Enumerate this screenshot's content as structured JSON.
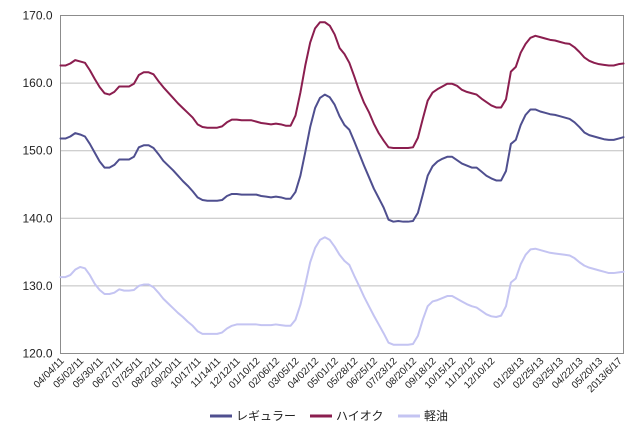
{
  "chart_data": {
    "type": "line",
    "title": "",
    "xlabel": "",
    "ylabel": "",
    "ylim": [
      120,
      170
    ],
    "yticks": [
      120,
      130,
      140,
      150,
      160,
      170
    ],
    "ytick_labels": [
      "120.0",
      "130.0",
      "140.0",
      "150.0",
      "160.0",
      "170.0"
    ],
    "grid": true,
    "legend_position": "bottom",
    "x": [
      "04/04/11",
      "04/11/11",
      "04/18/11",
      "04/25/11",
      "05/02/11",
      "05/09/11",
      "05/16/11",
      "05/23/11",
      "05/30/11",
      "06/06/11",
      "06/13/11",
      "06/20/11",
      "06/27/11",
      "07/04/11",
      "07/11/11",
      "07/18/11",
      "07/25/11",
      "08/01/11",
      "08/08/11",
      "08/15/11",
      "08/22/11",
      "08/29/11",
      "09/05/11",
      "09/12/11",
      "09/20/11",
      "09/26/11",
      "10/03/11",
      "10/10/11",
      "10/17/11",
      "10/24/11",
      "10/31/11",
      "11/07/11",
      "11/14/11",
      "11/21/11",
      "11/28/11",
      "12/05/11",
      "12/12/11",
      "12/19/11",
      "12/26/11",
      "01/02/12",
      "01/10/12",
      "01/16/12",
      "01/23/12",
      "01/30/12",
      "02/06/12",
      "02/13/12",
      "02/20/12",
      "02/27/12",
      "03/05/12",
      "03/12/12",
      "03/19/12",
      "03/26/12",
      "04/02/12",
      "04/09/12",
      "04/16/12",
      "04/23/12",
      "05/01/12",
      "05/07/12",
      "05/14/12",
      "05/21/12",
      "05/28/12",
      "06/04/12",
      "06/11/12",
      "06/18/12",
      "06/25/12",
      "07/02/12",
      "07/09/12",
      "07/17/12",
      "07/23/12",
      "07/30/12",
      "08/06/12",
      "08/13/12",
      "08/20/12",
      "08/27/12",
      "09/03/12",
      "09/10/12",
      "09/18/12",
      "09/24/12",
      "10/01/12",
      "10/09/12",
      "10/15/12",
      "10/22/12",
      "10/29/12",
      "11/05/12",
      "11/12/12",
      "11/19/12",
      "11/26/12",
      "12/03/12",
      "12/10/12",
      "12/17/12",
      "12/25/12",
      "01/07/13",
      "01/15/13",
      "01/21/13",
      "01/28/13",
      "02/04/13",
      "02/12/13",
      "02/18/13",
      "02/25/13",
      "03/04/13",
      "03/11/13",
      "03/18/13",
      "03/25/13",
      "04/01/13",
      "04/08/13",
      "04/15/13",
      "04/22/13",
      "04/30/13",
      "05/07/13",
      "05/13/13",
      "05/20/13",
      "05/27/13",
      "06/03/13",
      "06/10/13",
      "2013/6/17",
      "06/24/13"
    ],
    "xtick_labels": [
      "04/04/11",
      "05/02/11",
      "05/30/11",
      "06/27/11",
      "07/25/11",
      "08/22/11",
      "09/20/11",
      "10/17/11",
      "11/14/11",
      "12/12/11",
      "01/10/12",
      "02/06/12",
      "03/05/12",
      "04/02/12",
      "05/01/12",
      "05/28/12",
      "06/25/12",
      "07/23/12",
      "08/20/12",
      "09/18/12",
      "10/15/12",
      "11/12/12",
      "12/10/12",
      "01/28/13",
      "02/25/13",
      "03/25/13",
      "04/22/13",
      "05/20/13",
      "2013/6/17"
    ],
    "series": [
      {
        "name": "レギュラー",
        "color": "#4f4f8f",
        "values": [
          151.8,
          151.8,
          152.1,
          152.6,
          152.4,
          152.1,
          151.0,
          149.7,
          148.4,
          147.5,
          147.5,
          147.9,
          148.7,
          148.7,
          148.7,
          149.1,
          150.5,
          150.8,
          150.8,
          150.4,
          149.5,
          148.5,
          147.8,
          147.1,
          146.3,
          145.5,
          144.8,
          144.0,
          143.1,
          142.7,
          142.6,
          142.6,
          142.6,
          142.7,
          143.3,
          143.6,
          143.6,
          143.5,
          143.5,
          143.5,
          143.5,
          143.3,
          143.2,
          143.1,
          143.2,
          143.1,
          142.9,
          142.9,
          143.9,
          146.3,
          149.8,
          153.5,
          156.3,
          157.8,
          158.3,
          157.9,
          156.8,
          155.1,
          153.8,
          153.1,
          151.4,
          149.6,
          147.8,
          146.1,
          144.4,
          143.0,
          141.6,
          139.8,
          139.5,
          139.6,
          139.5,
          139.5,
          139.6,
          140.8,
          143.5,
          146.3,
          147.7,
          148.4,
          148.8,
          149.1,
          149.1,
          148.6,
          148.1,
          147.8,
          147.5,
          147.5,
          146.9,
          146.3,
          145.9,
          145.6,
          145.6,
          147.0,
          151.0,
          151.6,
          153.8,
          155.3,
          156.1,
          156.1,
          155.8,
          155.6,
          155.4,
          155.3,
          155.1,
          154.9,
          154.7,
          154.2,
          153.5,
          152.7,
          152.3,
          152.1,
          151.9,
          151.7,
          151.6,
          151.6,
          151.8,
          152.0
        ]
      },
      {
        "name": "ハイオク",
        "color": "#8b1e4f",
        "values": [
          162.6,
          162.6,
          162.9,
          163.4,
          163.2,
          163.0,
          161.9,
          160.6,
          159.4,
          158.5,
          158.3,
          158.7,
          159.5,
          159.5,
          159.5,
          159.9,
          161.2,
          161.6,
          161.6,
          161.3,
          160.3,
          159.4,
          158.6,
          157.8,
          157.0,
          156.3,
          155.6,
          154.9,
          153.9,
          153.5,
          153.4,
          153.4,
          153.4,
          153.6,
          154.2,
          154.6,
          154.6,
          154.5,
          154.5,
          154.5,
          154.3,
          154.1,
          154.0,
          153.9,
          154.0,
          153.9,
          153.7,
          153.7,
          155.2,
          158.6,
          162.6,
          166.0,
          168.1,
          169.0,
          169.0,
          168.5,
          167.2,
          165.2,
          164.3,
          163.0,
          161.0,
          158.9,
          157.1,
          155.7,
          154.0,
          152.6,
          151.5,
          150.5,
          150.4,
          150.4,
          150.4,
          150.4,
          150.5,
          151.9,
          154.7,
          157.4,
          158.6,
          159.1,
          159.5,
          159.9,
          159.9,
          159.6,
          159.0,
          158.7,
          158.5,
          158.3,
          157.7,
          157.2,
          156.7,
          156.4,
          156.4,
          157.6,
          161.7,
          162.4,
          164.5,
          165.8,
          166.7,
          167.0,
          166.8,
          166.6,
          166.4,
          166.3,
          166.1,
          165.9,
          165.8,
          165.3,
          164.6,
          163.8,
          163.3,
          163.0,
          162.8,
          162.7,
          162.6,
          162.6,
          162.8,
          162.9
        ]
      },
      {
        "name": "軽油",
        "color": "#c4c4f2",
        "values": [
          131.3,
          131.3,
          131.6,
          132.4,
          132.8,
          132.6,
          131.6,
          130.3,
          129.4,
          128.8,
          128.8,
          129.0,
          129.5,
          129.3,
          129.3,
          129.4,
          130.0,
          130.2,
          130.2,
          129.8,
          129.0,
          128.1,
          127.4,
          126.7,
          126.0,
          125.4,
          124.7,
          124.1,
          123.3,
          122.9,
          122.9,
          122.9,
          122.9,
          123.1,
          123.7,
          124.1,
          124.3,
          124.3,
          124.3,
          124.3,
          124.3,
          124.2,
          124.2,
          124.2,
          124.3,
          124.2,
          124.1,
          124.1,
          125.0,
          127.2,
          130.2,
          133.5,
          135.6,
          136.8,
          137.2,
          136.8,
          135.8,
          134.6,
          133.7,
          133.1,
          131.5,
          130.0,
          128.4,
          127.0,
          125.6,
          124.3,
          123.0,
          121.6,
          121.3,
          121.3,
          121.3,
          121.3,
          121.4,
          122.6,
          125.0,
          127.0,
          127.7,
          127.9,
          128.2,
          128.5,
          128.5,
          128.1,
          127.7,
          127.3,
          127.0,
          126.8,
          126.3,
          125.8,
          125.5,
          125.4,
          125.6,
          127.0,
          130.5,
          131.1,
          133.2,
          134.6,
          135.4,
          135.5,
          135.3,
          135.1,
          134.9,
          134.8,
          134.7,
          134.6,
          134.5,
          134.1,
          133.5,
          133.0,
          132.7,
          132.5,
          132.3,
          132.1,
          131.9,
          131.9,
          132.0,
          132.1
        ]
      }
    ]
  }
}
